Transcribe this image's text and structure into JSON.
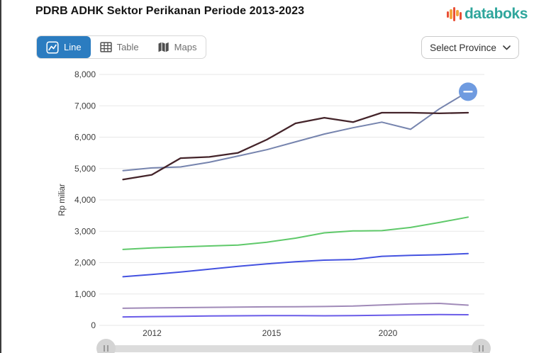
{
  "header": {
    "title": "PDRB ADHK Sektor Perikanan Periode 2013-2023",
    "brand": "databoks"
  },
  "toolbar": {
    "view_buttons": [
      {
        "label": "Line",
        "active": true
      },
      {
        "label": "Table",
        "active": false
      },
      {
        "label": "Maps",
        "active": false
      }
    ],
    "province_select": {
      "label": "Select Province"
    }
  },
  "chart_data": {
    "type": "line",
    "title": "PDRB ADHK Sektor Perikanan Periode 2013-2023",
    "xlabel": "",
    "ylabel": "Rp miliar",
    "ylim": [
      0,
      8000
    ],
    "grid": true,
    "legend": "none",
    "y_ticks": [
      "0",
      "1,000",
      "2,000",
      "3,000",
      "4,000",
      "5,000",
      "6,000",
      "7,000",
      "8,000"
    ],
    "x_tick_labels": [
      "2012",
      "2015",
      "2020"
    ],
    "x_years": [
      2011,
      2012,
      2013,
      2014,
      2015,
      2016,
      2017,
      2018,
      2019,
      2020,
      2021,
      2022,
      2023
    ],
    "series": [
      {
        "name": "series-dark-maroon",
        "color": "#44242a",
        "values": [
          4650,
          4800,
          5330,
          5370,
          5500,
          5920,
          6440,
          6620,
          6480,
          6780,
          6780,
          6760,
          6780
        ]
      },
      {
        "name": "series-slate-blue",
        "color": "#7684ae",
        "values": [
          4930,
          5020,
          5050,
          5200,
          5400,
          5600,
          5850,
          6100,
          6300,
          6480,
          6250,
          6900,
          7450
        ]
      },
      {
        "name": "series-green",
        "color": "#5fc96a",
        "values": [
          2420,
          2470,
          2500,
          2530,
          2560,
          2650,
          2780,
          2950,
          3010,
          3020,
          3120,
          3280,
          3450
        ]
      },
      {
        "name": "series-blue",
        "color": "#4452e0",
        "values": [
          1550,
          1620,
          1700,
          1790,
          1880,
          1960,
          2030,
          2080,
          2100,
          2200,
          2230,
          2250,
          2290
        ]
      },
      {
        "name": "series-muted-purple",
        "color": "#a08ab8",
        "values": [
          545,
          555,
          565,
          575,
          580,
          590,
          595,
          600,
          615,
          650,
          685,
          700,
          645
        ]
      },
      {
        "name": "series-blue-violet",
        "color": "#6a5ce8",
        "values": [
          270,
          280,
          290,
          300,
          305,
          310,
          310,
          305,
          310,
          320,
          335,
          345,
          340
        ]
      }
    ],
    "endpoint_marker": {
      "series": "series-slate-blue",
      "color": "#6f9be0"
    }
  }
}
